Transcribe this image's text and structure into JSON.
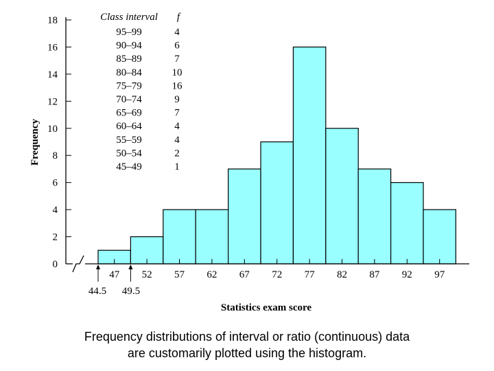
{
  "chart_data": {
    "type": "bar",
    "title": "",
    "xlabel": "Statistics exam score",
    "ylabel": "Frequency",
    "ylim": [
      0,
      18
    ],
    "yticks": [
      "0",
      "2",
      "4",
      "6",
      "8",
      "10",
      "12",
      "14",
      "16",
      "18"
    ],
    "categories": [
      "47",
      "52",
      "57",
      "62",
      "67",
      "72",
      "77",
      "82",
      "87",
      "92",
      "97"
    ],
    "values": [
      1,
      2,
      4,
      4,
      7,
      9,
      16,
      10,
      7,
      6,
      4
    ],
    "boundary_labels": [
      "44.5",
      "49.5"
    ],
    "bar_color": "#99ffff",
    "table": {
      "header_interval": "Class interval",
      "header_f": "f",
      "rows": [
        {
          "interval": "95–99",
          "f": "4"
        },
        {
          "interval": "90–94",
          "f": "6"
        },
        {
          "interval": "85–89",
          "f": "7"
        },
        {
          "interval": "80–84",
          "f": "10"
        },
        {
          "interval": "75–79",
          "f": "16"
        },
        {
          "interval": "70–74",
          "f": "9"
        },
        {
          "interval": "65–69",
          "f": "7"
        },
        {
          "interval": "60–64",
          "f": "4"
        },
        {
          "interval": "55–59",
          "f": "4"
        },
        {
          "interval": "50–54",
          "f": "2"
        },
        {
          "interval": "45–49",
          "f": "1"
        }
      ]
    }
  },
  "caption": {
    "line1": "Frequency distributions of interval or ratio (continuous) data",
    "line2": "are customarily plotted using the histogram."
  }
}
